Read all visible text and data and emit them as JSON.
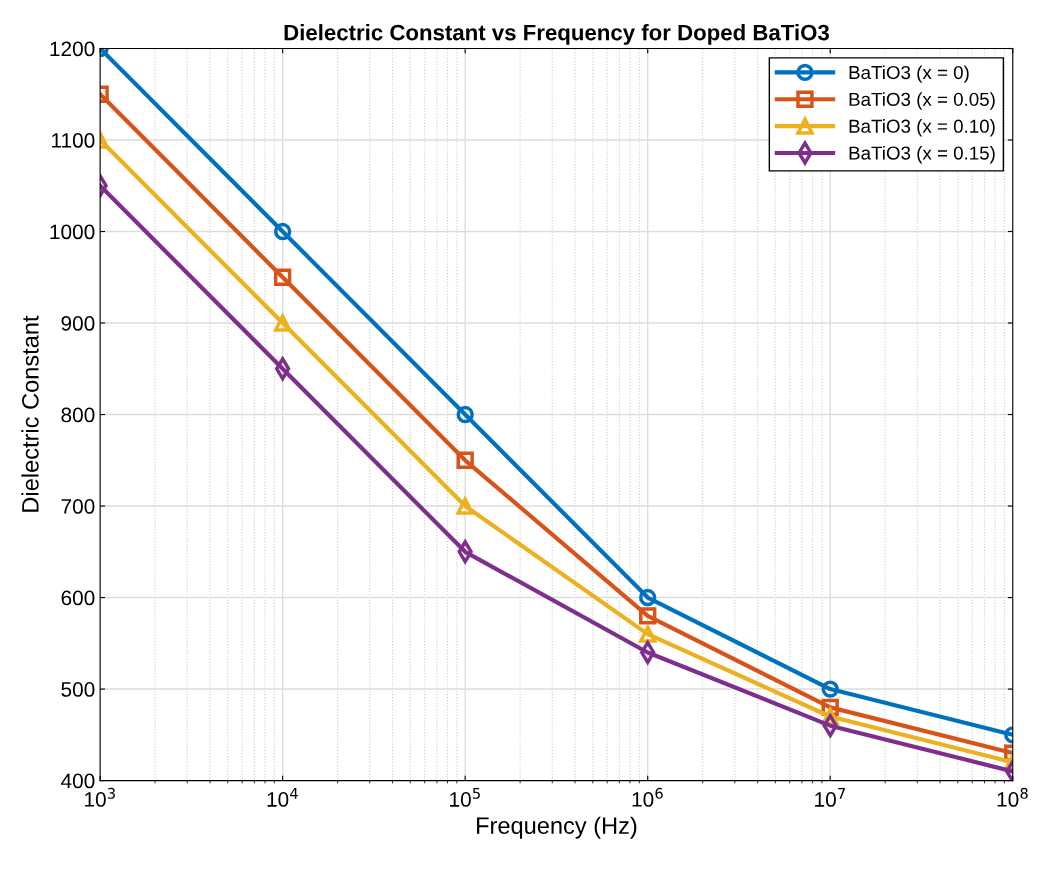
{
  "chart_data": {
    "type": "line",
    "title": "Dielectric Constant vs Frequency for Doped BaTiO3",
    "xlabel": "Frequency (Hz)",
    "ylabel": "Dielectric Constant",
    "x": [
      1000,
      10000,
      100000,
      1000000,
      10000000,
      100000000
    ],
    "log": "x",
    "xlim": [
      1000,
      100000000
    ],
    "xticks": [
      {
        "value": 1000,
        "label": "10$^{3}$"
      },
      {
        "value": 10000,
        "label": "10$^{4}$"
      },
      {
        "value": 100000,
        "label": "10$^{5}$"
      },
      {
        "value": 1000000,
        "label": "10$^{6}$"
      },
      {
        "value": 10000000,
        "label": "10$^{7}$"
      },
      {
        "value": 100000000,
        "label": "10$^{8}$"
      }
    ],
    "ylim": [
      400,
      1200
    ],
    "yticks": [
      400,
      500,
      600,
      700,
      800,
      900,
      1000,
      1100,
      1200
    ],
    "grid": true,
    "legend": "top right",
    "line_style": "solid",
    "series": [
      {
        "name": "BaTiO3 (x = 0)",
        "color": "#0072bd",
        "marker": "circle",
        "values": [
          1200,
          1000,
          800,
          600,
          500,
          450
        ]
      },
      {
        "name": "BaTiO3 (x = 0.05)",
        "color": "#d95319",
        "marker": "square",
        "values": [
          1150,
          950,
          750,
          580,
          480,
          430
        ]
      },
      {
        "name": "BaTiO3 (x = 0.10)",
        "color": "#edb120",
        "marker": "triangle",
        "values": [
          1100,
          900,
          700,
          560,
          470,
          420
        ]
      },
      {
        "name": "BaTiO3 (x = 0.15)",
        "color": "#7e2f8e",
        "marker": "diamond",
        "values": [
          1050,
          850,
          650,
          540,
          460,
          410
        ]
      }
    ]
  }
}
